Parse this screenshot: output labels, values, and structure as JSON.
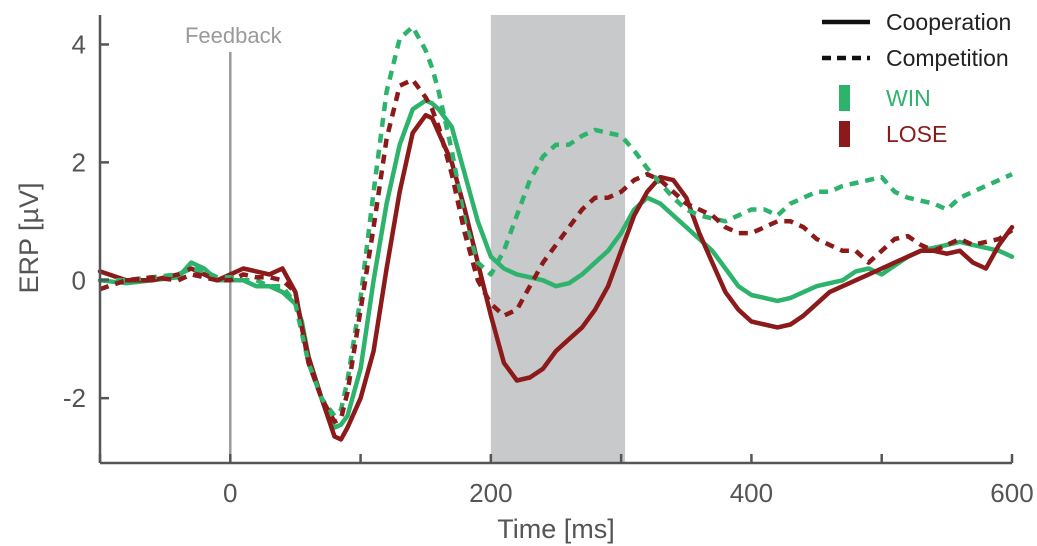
{
  "chart_data": {
    "type": "line",
    "title": "",
    "xlabel": "Time [ms]",
    "ylabel": "ERP [µV]",
    "xlim": [
      -100,
      600
    ],
    "ylim": [
      -3.1,
      4.5
    ],
    "x_ticks": [
      0,
      200,
      400,
      600
    ],
    "y_ticks": [
      -2,
      0,
      2,
      4
    ],
    "shaded_region": [
      200,
      303
    ],
    "annotation": {
      "label": "Feedback",
      "x": 0
    },
    "legend": {
      "placement": "top-right",
      "line_styles": [
        {
          "label": "Cooperation",
          "style": "solid"
        },
        {
          "label": "Competition",
          "style": "dashed"
        }
      ],
      "conditions": [
        {
          "label": "WIN",
          "color": "#2db36b"
        },
        {
          "label": "LOSE",
          "color": "#8c1a1a"
        }
      ]
    },
    "series": [
      {
        "name": "WIN Cooperation",
        "condition": "WIN",
        "style": "solid",
        "color": "#2db36b",
        "x": [
          -100,
          -80,
          -60,
          -40,
          -30,
          -20,
          -10,
          0,
          10,
          20,
          30,
          40,
          50,
          55,
          60,
          70,
          80,
          85,
          90,
          100,
          110,
          120,
          130,
          140,
          150,
          155,
          160,
          170,
          180,
          190,
          200,
          210,
          220,
          230,
          240,
          250,
          260,
          270,
          280,
          290,
          300,
          310,
          320,
          330,
          340,
          350,
          360,
          370,
          380,
          390,
          400,
          410,
          420,
          430,
          440,
          450,
          460,
          470,
          480,
          490,
          500,
          510,
          520,
          530,
          540,
          550,
          560,
          570,
          580,
          590,
          600
        ],
        "y": [
          0,
          -0.05,
          0,
          0.05,
          0.3,
          0.2,
          0,
          0,
          0,
          -0.1,
          -0.1,
          -0.2,
          -0.4,
          -0.7,
          -1.3,
          -2.0,
          -2.5,
          -2.45,
          -2.3,
          -1.5,
          0,
          1.3,
          2.3,
          2.9,
          3.05,
          3.0,
          2.9,
          2.6,
          1.8,
          1.0,
          0.4,
          0.2,
          0.1,
          0.05,
          0,
          -0.1,
          -0.05,
          0.1,
          0.3,
          0.5,
          0.8,
          1.2,
          1.4,
          1.3,
          1.1,
          0.9,
          0.7,
          0.5,
          0.2,
          -0.1,
          -0.25,
          -0.3,
          -0.35,
          -0.3,
          -0.2,
          -0.1,
          -0.05,
          0,
          0.15,
          0.2,
          0.1,
          0.25,
          0.4,
          0.5,
          0.55,
          0.6,
          0.65,
          0.6,
          0.55,
          0.5,
          0.4
        ]
      },
      {
        "name": "LOSE Cooperation",
        "condition": "LOSE",
        "style": "solid",
        "color": "#8c1a1a",
        "x": [
          -100,
          -80,
          -60,
          -40,
          -30,
          -20,
          -10,
          0,
          10,
          20,
          30,
          40,
          50,
          55,
          60,
          70,
          80,
          85,
          90,
          100,
          110,
          120,
          130,
          140,
          150,
          155,
          160,
          170,
          180,
          190,
          200,
          210,
          220,
          230,
          240,
          250,
          260,
          270,
          280,
          290,
          300,
          310,
          320,
          330,
          340,
          350,
          360,
          370,
          380,
          390,
          400,
          410,
          420,
          430,
          440,
          450,
          460,
          470,
          480,
          490,
          500,
          510,
          520,
          530,
          540,
          550,
          560,
          570,
          580,
          590,
          600
        ],
        "y": [
          0.15,
          0,
          0,
          0.1,
          0.2,
          0.1,
          0,
          0.1,
          0.2,
          0.15,
          0.1,
          0.2,
          -0.2,
          -0.8,
          -1.3,
          -2.0,
          -2.65,
          -2.7,
          -2.5,
          -2.0,
          -1.2,
          0.2,
          1.5,
          2.5,
          2.8,
          2.75,
          2.5,
          2.0,
          1.2,
          0.3,
          -0.6,
          -1.4,
          -1.7,
          -1.65,
          -1.5,
          -1.2,
          -1.0,
          -0.8,
          -0.5,
          -0.1,
          0.5,
          1.1,
          1.5,
          1.75,
          1.7,
          1.4,
          0.8,
          0.3,
          -0.2,
          -0.5,
          -0.7,
          -0.75,
          -0.8,
          -0.75,
          -0.6,
          -0.4,
          -0.2,
          -0.1,
          0,
          0.1,
          0.2,
          0.3,
          0.4,
          0.5,
          0.5,
          0.45,
          0.5,
          0.3,
          0.2,
          0.6,
          0.9
        ]
      },
      {
        "name": "WIN Competition",
        "condition": "WIN",
        "style": "dashed",
        "color": "#2db36b",
        "x": [
          -100,
          -80,
          -60,
          -40,
          -30,
          -20,
          -10,
          0,
          10,
          20,
          30,
          40,
          50,
          55,
          60,
          70,
          80,
          85,
          90,
          100,
          110,
          120,
          130,
          140,
          150,
          155,
          160,
          170,
          180,
          190,
          200,
          210,
          220,
          230,
          240,
          250,
          260,
          270,
          280,
          290,
          300,
          310,
          320,
          330,
          340,
          350,
          360,
          370,
          380,
          390,
          400,
          410,
          420,
          430,
          440,
          450,
          460,
          470,
          480,
          490,
          500,
          510,
          520,
          530,
          540,
          550,
          560,
          570,
          580,
          590,
          600
        ],
        "y": [
          0,
          0,
          0.05,
          0.1,
          0.2,
          0.15,
          0.05,
          0.05,
          0,
          0,
          -0.1,
          -0.1,
          -0.4,
          -0.9,
          -1.4,
          -2.0,
          -2.3,
          -2.2,
          -1.7,
          -0.3,
          1.5,
          3.2,
          4.1,
          4.3,
          3.9,
          3.6,
          3.2,
          2.2,
          1.0,
          0.3,
          0.1,
          0.5,
          1.1,
          1.7,
          2.1,
          2.3,
          2.3,
          2.45,
          2.55,
          2.5,
          2.45,
          2.2,
          1.9,
          1.65,
          1.4,
          1.2,
          1.1,
          1.05,
          1.0,
          1.1,
          1.2,
          1.2,
          1.1,
          1.3,
          1.4,
          1.5,
          1.5,
          1.6,
          1.65,
          1.7,
          1.75,
          1.5,
          1.4,
          1.35,
          1.3,
          1.2,
          1.4,
          1.5,
          1.6,
          1.7,
          1.8
        ]
      },
      {
        "name": "LOSE Competition",
        "condition": "LOSE",
        "style": "dashed",
        "color": "#8c1a1a",
        "x": [
          -100,
          -80,
          -60,
          -40,
          -30,
          -20,
          -10,
          0,
          10,
          20,
          30,
          40,
          50,
          55,
          60,
          70,
          80,
          85,
          90,
          100,
          110,
          120,
          130,
          140,
          150,
          155,
          160,
          170,
          180,
          190,
          200,
          210,
          220,
          230,
          240,
          250,
          260,
          270,
          280,
          290,
          300,
          310,
          320,
          330,
          340,
          350,
          360,
          370,
          380,
          390,
          400,
          410,
          420,
          430,
          440,
          450,
          460,
          470,
          480,
          490,
          500,
          510,
          520,
          530,
          540,
          550,
          560,
          570,
          580,
          590,
          600
        ],
        "y": [
          -0.15,
          0,
          0.05,
          0,
          0.1,
          0.05,
          0,
          0,
          0.1,
          0.05,
          0.05,
          0,
          -0.2,
          -0.8,
          -1.4,
          -2.0,
          -2.4,
          -2.35,
          -1.9,
          -0.5,
          0.9,
          2.4,
          3.3,
          3.4,
          3.1,
          2.9,
          2.6,
          1.8,
          0.8,
          0,
          -0.4,
          -0.6,
          -0.5,
          -0.1,
          0.3,
          0.6,
          0.9,
          1.2,
          1.4,
          1.4,
          1.5,
          1.7,
          1.8,
          1.7,
          1.5,
          1.3,
          1.2,
          1.1,
          0.9,
          0.8,
          0.8,
          0.9,
          1.0,
          1.0,
          0.9,
          0.7,
          0.6,
          0.5,
          0.5,
          0.3,
          0.5,
          0.7,
          0.75,
          0.6,
          0.5,
          0.6,
          0.7,
          0.6,
          0.65,
          0.7,
          0.85
        ]
      }
    ]
  }
}
